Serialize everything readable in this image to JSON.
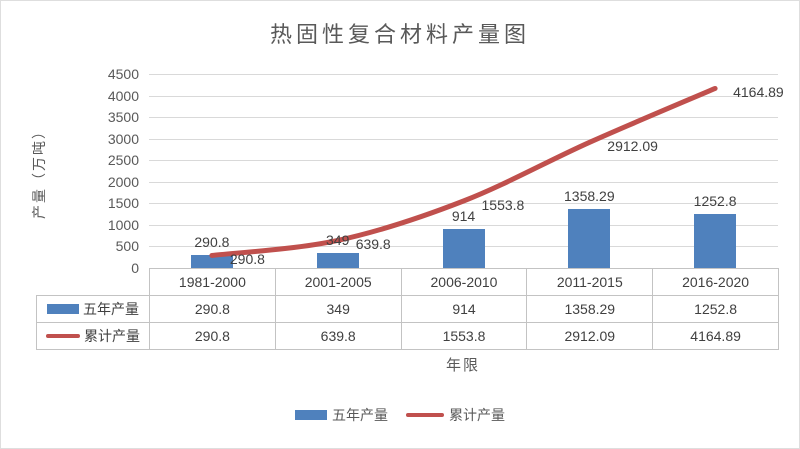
{
  "chart_data": {
    "type": "bar+line",
    "title": "热固性复合材料产量图",
    "xlabel": "年限",
    "ylabel": "产量（万吨）",
    "categories": [
      "1981-2000",
      "2001-2005",
      "2006-2010",
      "2011-2015",
      "2016-2020"
    ],
    "series": [
      {
        "name": "五年产量",
        "type": "bar",
        "color": "#4F81BD",
        "values": [
          290.8,
          349,
          914,
          1358.29,
          1252.8
        ],
        "labels": [
          "290.8",
          "349",
          "914",
          "1358.29",
          "1252.8"
        ]
      },
      {
        "name": "累计产量",
        "type": "line",
        "color": "#C0504D",
        "values": [
          290.8,
          639.8,
          1553.8,
          2912.09,
          4164.89
        ],
        "labels": [
          "290.8",
          "639.8",
          "1553.8",
          "2912.09",
          "4164.89"
        ]
      }
    ],
    "ylim": [
      0,
      4500
    ],
    "yticks": [
      0,
      500,
      1000,
      1500,
      2000,
      2500,
      3000,
      3500,
      4000,
      4500
    ],
    "grid": true,
    "legend_position": "bottom",
    "data_table_shown": true,
    "colors": {
      "grid": "#d9d9d9",
      "axis": "#bfbfbf",
      "text": "#595959",
      "label_text": "#404040",
      "table_border": "#c3c3c3"
    }
  }
}
